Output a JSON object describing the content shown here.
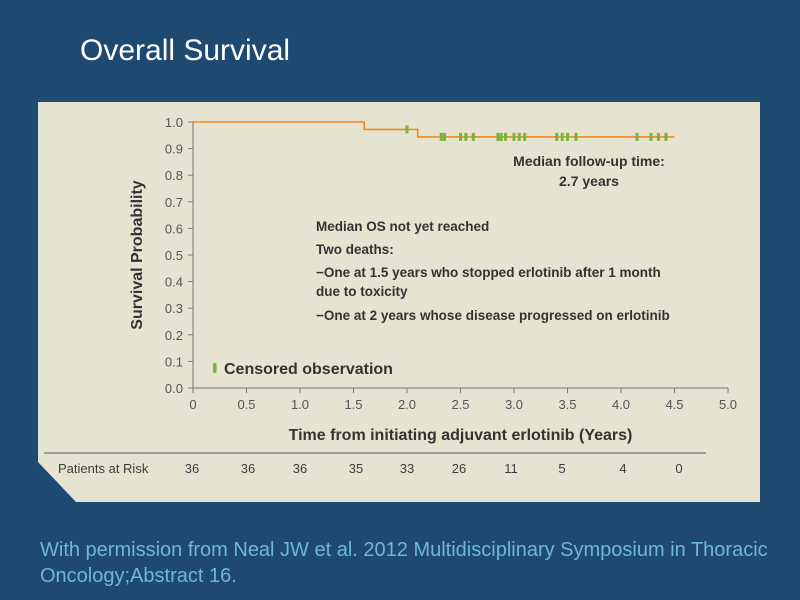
{
  "slide": {
    "title": "Overall Survival",
    "caption": "With permission from Neal JW et al. 2012 Multidisciplinary Symposium in Thoracic Oncology;Abstract 16."
  },
  "colors": {
    "background": "#1e4a72",
    "panel": "#e6e3d1",
    "curve": "#f08a22",
    "censor": "#7ab33e",
    "caption": "#6fb5de"
  },
  "chart_data": {
    "type": "line",
    "title": "",
    "xlabel": "Time from initiating adjuvant erlotinib (Years)",
    "ylabel": "Survival  Probability",
    "xlim": [
      0,
      5.0
    ],
    "ylim": [
      0,
      1.0
    ],
    "x_ticks": [
      "0",
      "0.5",
      "1.0",
      "1.5",
      "2.0",
      "2.5",
      "3.0",
      "3.5",
      "4.0",
      "4.5",
      "5.0"
    ],
    "y_ticks": [
      "0.0",
      "0.1",
      "0.2",
      "0.3",
      "0.4",
      "0.5",
      "0.6",
      "0.7",
      "0.8",
      "0.9",
      "1.0"
    ],
    "grid": false,
    "series": [
      {
        "steps": [
          {
            "x": 0,
            "y": 1.0
          },
          {
            "x": 1.6,
            "y": 0.972
          },
          {
            "x": 2.1,
            "y": 0.944
          },
          {
            "x": 4.5,
            "y": 0.944
          }
        ],
        "censored_x": [
          2.0,
          2.32,
          2.35,
          2.5,
          2.55,
          2.62,
          2.85,
          2.88,
          2.92,
          3.0,
          3.05,
          3.1,
          3.4,
          3.45,
          3.5,
          3.58,
          4.15,
          4.28,
          4.35,
          4.42
        ]
      }
    ],
    "legend": {
      "label": "Censored observation",
      "position": "bottom-left"
    },
    "annotations": {
      "followup": [
        "Median follow-up time:",
        "2.7 years"
      ],
      "notes": [
        "Median OS not yet reached",
        "Two deaths:",
        "−One at 1.5 years who stopped erlotinib after 1 month",
        "due to toxicity",
        "−One at 2 years whose disease progressed on erlotinib"
      ]
    },
    "risk_table": {
      "label": "Patients at Risk",
      "values": [
        "36",
        "36",
        "36",
        "35",
        "33",
        "26",
        "11",
        "5",
        "4",
        "0"
      ],
      "x_positions_years": [
        0,
        0.5,
        1.0,
        1.5,
        2.0,
        2.5,
        3.0,
        3.5,
        4.0,
        4.5
      ]
    }
  }
}
